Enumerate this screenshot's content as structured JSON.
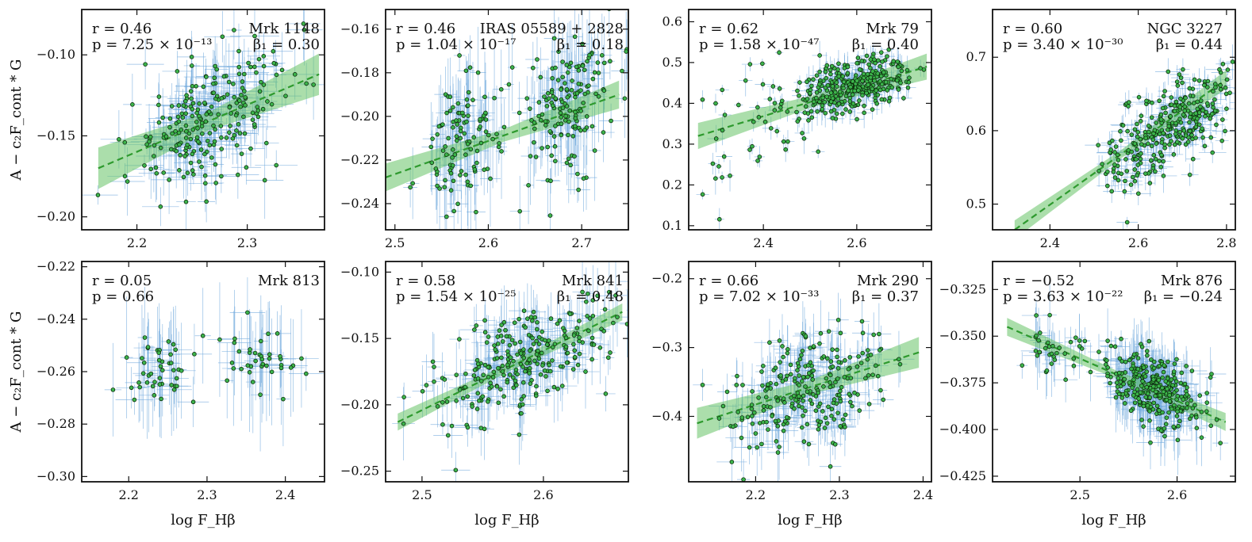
{
  "figure": {
    "ylabel": "A − c₂F_cont * G",
    "xlabel": "log F_Hβ",
    "colors": {
      "point_fill": "#3cb44b",
      "point_edge": "#0b2a0b",
      "errorbar": "#6fa8dc",
      "fit_line": "#2e9a2e",
      "fit_band": "#66c266"
    }
  },
  "chart_data": [
    {
      "type": "scatter",
      "name": "Mrk 1148",
      "r_text": "r = 0.46",
      "p_text": "p = 7.25 × 10⁻¹³",
      "beta_text": "β₁ = 0.30",
      "xlim": [
        2.15,
        2.37
      ],
      "ylim": [
        -0.208,
        -0.072
      ],
      "xticks": [
        2.2,
        2.3
      ],
      "xtick_labels": [
        "2.2",
        "2.3"
      ],
      "yticks": [
        -0.2,
        -0.15,
        -0.1
      ],
      "ytick_labels": [
        "−0.20",
        "−0.15",
        "−0.10"
      ],
      "fit": {
        "x0": 2.165,
        "y0": -0.17,
        "x1": 2.365,
        "y1": -0.112,
        "band": 0.008
      },
      "cloud": [
        {
          "cx": 2.27,
          "cy": -0.14,
          "sx": 0.035,
          "sy": 0.018,
          "n": 230
        }
      ],
      "trend": 0.29,
      "xerr": 0.014,
      "yerr": 0.012,
      "seed": 11
    },
    {
      "type": "scatter",
      "name": "IRAS 05589 + 2828",
      "r_text": "r = 0.46",
      "p_text": "p = 1.04 × 10⁻¹⁷",
      "beta_text": "β₁ = 0.18",
      "xlim": [
        2.49,
        2.75
      ],
      "ylim": [
        -0.252,
        -0.151
      ],
      "xticks": [
        2.5,
        2.6,
        2.7
      ],
      "xtick_labels": [
        "2.5",
        "2.6",
        "2.7"
      ],
      "yticks": [
        -0.24,
        -0.22,
        -0.2,
        -0.18,
        -0.16
      ],
      "ytick_labels": [
        "−0.24",
        "−0.22",
        "−0.20",
        "−0.18",
        "−0.16"
      ],
      "fit": {
        "x0": 2.49,
        "y0": -0.228,
        "x1": 2.74,
        "y1": -0.19,
        "band": 0.004
      },
      "cloud": [
        {
          "cx": 2.57,
          "cy": -0.215,
          "sx": 0.02,
          "sy": 0.014,
          "n": 110
        },
        {
          "cx": 2.68,
          "cy": -0.196,
          "sx": 0.028,
          "sy": 0.016,
          "n": 160
        }
      ],
      "trend": 0.15,
      "xerr": 0.008,
      "yerr": 0.012,
      "seed": 23
    },
    {
      "type": "scatter",
      "name": "Mrk 79",
      "r_text": "r = 0.62",
      "p_text": "p = 1.58 × 10⁻⁴⁷",
      "beta_text": "β₁ = 0.40",
      "xlim": [
        2.24,
        2.76
      ],
      "ylim": [
        0.09,
        0.63
      ],
      "xticks": [
        2.4,
        2.6
      ],
      "xtick_labels": [
        "2.4",
        "2.6"
      ],
      "yticks": [
        0.1,
        0.2,
        0.3,
        0.4,
        0.5,
        0.6
      ],
      "ytick_labels": [
        "0.1",
        "0.2",
        "0.3",
        "0.4",
        "0.5",
        "0.6"
      ],
      "fit": {
        "x0": 2.26,
        "y0": 0.32,
        "x1": 2.75,
        "y1": 0.49,
        "band": 0.02
      },
      "cloud": [
        {
          "cx": 2.6,
          "cy": 0.445,
          "sx": 0.06,
          "sy": 0.03,
          "n": 330
        },
        {
          "cx": 2.42,
          "cy": 0.39,
          "sx": 0.06,
          "sy": 0.08,
          "n": 35
        },
        {
          "cx": 2.3,
          "cy": 0.22,
          "sx": 0.02,
          "sy": 0.06,
          "n": 10
        }
      ],
      "trend": 0.25,
      "xerr": 0.012,
      "yerr": 0.02,
      "seed": 37
    },
    {
      "type": "scatter",
      "name": "NGC 3227",
      "r_text": "r = 0.60",
      "p_text": "p = 3.40 × 10⁻³⁰",
      "beta_text": "β₁ = 0.44",
      "xlim": [
        2.27,
        2.82
      ],
      "ylim": [
        0.465,
        0.765
      ],
      "xticks": [
        2.4,
        2.6,
        2.8
      ],
      "xtick_labels": [
        "2.4",
        "2.6",
        "2.8"
      ],
      "yticks": [
        0.5,
        0.6,
        0.7
      ],
      "ytick_labels": [
        "0.5",
        "0.6",
        "0.7"
      ],
      "fit": {
        "x0": 2.32,
        "y0": 0.465,
        "x1": 2.8,
        "y1": 0.67,
        "band": 0.008
      },
      "cloud": [
        {
          "cx": 2.7,
          "cy": 0.615,
          "sx": 0.06,
          "sy": 0.028,
          "n": 230
        },
        {
          "cx": 2.57,
          "cy": 0.56,
          "sx": 0.04,
          "sy": 0.04,
          "n": 70
        }
      ],
      "trend": 0.3,
      "xerr": 0.02,
      "yerr": 0.012,
      "seed": 41
    },
    {
      "type": "scatter",
      "name": "Mrk 813",
      "r_text": "r = 0.05",
      "p_text": "p = 0.66",
      "beta_text": "",
      "xlim": [
        2.14,
        2.45
      ],
      "ylim": [
        -0.302,
        -0.218
      ],
      "xticks": [
        2.2,
        2.3,
        2.4
      ],
      "xtick_labels": [
        "2.2",
        "2.3",
        "2.4"
      ],
      "yticks": [
        -0.3,
        -0.28,
        -0.26,
        -0.24,
        -0.22
      ],
      "ytick_labels": [
        "−0.30",
        "−0.28",
        "−0.26",
        "−0.24",
        "−0.22"
      ],
      "fit": null,
      "cloud": [
        {
          "cx": 2.24,
          "cy": -0.26,
          "sx": 0.03,
          "sy": 0.008,
          "n": 45
        },
        {
          "cx": 2.37,
          "cy": -0.255,
          "sx": 0.03,
          "sy": 0.007,
          "n": 40
        }
      ],
      "trend": 0.0,
      "xerr": 0.016,
      "yerr": 0.012,
      "seed": 53
    },
    {
      "type": "scatter",
      "name": "Mrk 841",
      "r_text": "r = 0.58",
      "p_text": "p = 1.54 × 10⁻²⁵",
      "beta_text": "β₁ = 0.48",
      "xlim": [
        2.47,
        2.67
      ],
      "ylim": [
        -0.258,
        -0.092
      ],
      "xticks": [
        2.5,
        2.6
      ],
      "xtick_labels": [
        "2.5",
        "2.6"
      ],
      "yticks": [
        -0.25,
        -0.2,
        -0.15,
        -0.1
      ],
      "ytick_labels": [
        "−0.25",
        "−0.20",
        "−0.15",
        "−0.10"
      ],
      "fit": {
        "x0": 2.48,
        "y0": -0.213,
        "x1": 2.665,
        "y1": -0.13,
        "band": 0.004
      },
      "cloud": [
        {
          "cx": 2.58,
          "cy": -0.17,
          "sx": 0.035,
          "sy": 0.018,
          "n": 270
        }
      ],
      "trend": 0.35,
      "xerr": 0.008,
      "yerr": 0.014,
      "seed": 67
    },
    {
      "type": "scatter",
      "name": "Mrk 290",
      "r_text": "r = 0.66",
      "p_text": "p = 7.02 × 10⁻³³",
      "beta_text": "β₁ = 0.37",
      "xlim": [
        2.12,
        2.41
      ],
      "ylim": [
        -0.495,
        -0.175
      ],
      "xticks": [
        2.2,
        2.3,
        2.4
      ],
      "xtick_labels": [
        "2.2",
        "2.3",
        "2.4"
      ],
      "yticks": [
        -0.4,
        -0.3,
        -0.2
      ],
      "ytick_labels": [
        "−0.4",
        "−0.3",
        "−0.2"
      ],
      "fit": {
        "x0": 2.13,
        "y0": -0.41,
        "x1": 2.395,
        "y1": -0.307,
        "band": 0.014
      },
      "cloud": [
        {
          "cx": 2.26,
          "cy": -0.36,
          "sx": 0.05,
          "sy": 0.04,
          "n": 250
        }
      ],
      "trend": 0.4,
      "xerr": 0.012,
      "yerr": 0.025,
      "seed": 79
    },
    {
      "type": "scatter",
      "name": "Mrk 876",
      "r_text": "r = −0.52",
      "p_text": "p = 3.63 × 10⁻²²",
      "beta_text": "β₁ = −0.24",
      "xlim": [
        2.41,
        2.66
      ],
      "ylim": [
        -0.428,
        -0.31
      ],
      "xticks": [
        2.5,
        2.6
      ],
      "xtick_labels": [
        "2.5",
        "2.6"
      ],
      "yticks": [
        -0.425,
        -0.4,
        -0.375,
        -0.35,
        -0.325
      ],
      "ytick_labels": [
        "−0.425",
        "−0.400",
        "−0.375",
        "−0.350",
        "−0.325"
      ],
      "fit": {
        "x0": 2.425,
        "y0": -0.345,
        "x1": 2.65,
        "y1": -0.396,
        "band": 0.003
      },
      "cloud": [
        {
          "cx": 2.575,
          "cy": -0.378,
          "sx": 0.025,
          "sy": 0.01,
          "n": 300
        },
        {
          "cx": 2.47,
          "cy": -0.358,
          "sx": 0.02,
          "sy": 0.008,
          "n": 35
        }
      ],
      "trend": -0.2,
      "xerr": 0.01,
      "yerr": 0.01,
      "seed": 97
    }
  ]
}
